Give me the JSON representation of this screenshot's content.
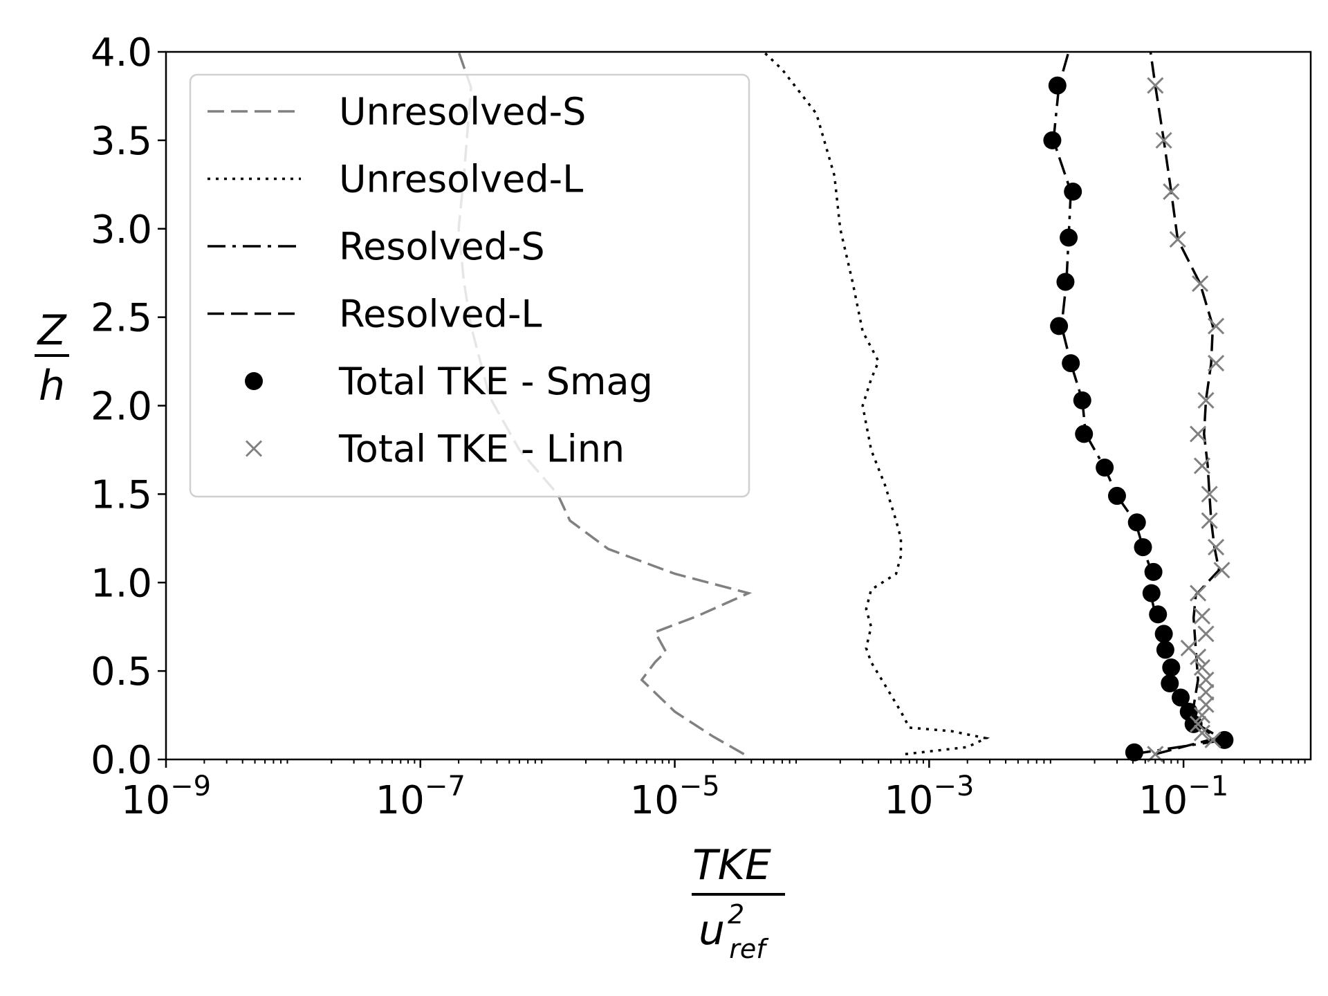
{
  "chart_data": {
    "type": "line",
    "title": "",
    "xscale": "log",
    "xlim": [
      1e-09,
      1
    ],
    "ylim": [
      0,
      4
    ],
    "grid": false,
    "legend_position": "upper-left",
    "xticks": [
      {
        "value": 1e-09,
        "base": "10",
        "exponent": "−9"
      },
      {
        "value": 1e-07,
        "base": "10",
        "exponent": "−7"
      },
      {
        "value": 1e-05,
        "base": "10",
        "exponent": "−5"
      },
      {
        "value": 0.001,
        "base": "10",
        "exponent": "−3"
      },
      {
        "value": 0.1,
        "base": "10",
        "exponent": "−1"
      }
    ],
    "yticks": [
      {
        "value": 0.0,
        "label": "0.0"
      },
      {
        "value": 0.5,
        "label": "0.5"
      },
      {
        "value": 1.0,
        "label": "1.0"
      },
      {
        "value": 1.5,
        "label": "1.5"
      },
      {
        "value": 2.0,
        "label": "2.0"
      },
      {
        "value": 2.5,
        "label": "2.5"
      },
      {
        "value": 3.0,
        "label": "3.0"
      },
      {
        "value": 3.5,
        "label": "3.5"
      },
      {
        "value": 4.0,
        "label": "4.0"
      }
    ],
    "xlabel": {
      "numerator": "TKE",
      "denominator_base": "u",
      "denominator_sup": "2",
      "denominator_sub": "ref"
    },
    "ylabel": {
      "numerator": "Z",
      "denominator": "h"
    },
    "series": [
      {
        "name": "Unresolved-S",
        "style": "dashed",
        "color": "#808080",
        "marker": "none",
        "points": [
          [
            3.5e-05,
            0.03
          ],
          [
            2e-05,
            0.13
          ],
          [
            1e-05,
            0.27
          ],
          [
            5.5e-06,
            0.45
          ],
          [
            7e-06,
            0.55
          ],
          [
            8.5e-06,
            0.61
          ],
          [
            7e-06,
            0.72
          ],
          [
            1.5e-05,
            0.81
          ],
          [
            3.8e-05,
            0.94
          ],
          [
            1e-05,
            1.05
          ],
          [
            3e-06,
            1.19
          ],
          [
            1.5e-06,
            1.35
          ],
          [
            1.2e-06,
            1.5
          ],
          [
            6e-07,
            1.75
          ],
          [
            3.5e-07,
            2.05
          ],
          [
            2.5e-07,
            2.45
          ],
          [
            2.2e-07,
            2.7
          ],
          [
            2e-07,
            3.0
          ],
          [
            2.2e-07,
            3.3
          ],
          [
            2.5e-07,
            3.8
          ],
          [
            2e-07,
            4.0
          ]
        ]
      },
      {
        "name": "Unresolved-L",
        "style": "dotted",
        "color": "#000000",
        "marker": "none",
        "points": [
          [
            0.00065,
            0.03
          ],
          [
            0.002,
            0.07
          ],
          [
            0.0028,
            0.12
          ],
          [
            0.0015,
            0.16
          ],
          [
            0.0007,
            0.18
          ],
          [
            0.0006,
            0.27
          ],
          [
            0.00045,
            0.42
          ],
          [
            0.00035,
            0.55
          ],
          [
            0.00032,
            0.63
          ],
          [
            0.00035,
            0.75
          ],
          [
            0.00032,
            0.85
          ],
          [
            0.00035,
            0.96
          ],
          [
            0.00055,
            1.05
          ],
          [
            0.0006,
            1.15
          ],
          [
            0.0006,
            1.25
          ],
          [
            0.00055,
            1.35
          ],
          [
            0.00045,
            1.55
          ],
          [
            0.00035,
            1.75
          ],
          [
            0.0003,
            2.0
          ],
          [
            0.00035,
            2.15
          ],
          [
            0.0004,
            2.25
          ],
          [
            0.0003,
            2.42
          ],
          [
            0.00025,
            2.7
          ],
          [
            0.0002,
            3.0
          ],
          [
            0.00018,
            3.3
          ],
          [
            0.00013,
            3.65
          ],
          [
            7e-05,
            3.9
          ],
          [
            5e-05,
            4.0
          ]
        ]
      },
      {
        "name": "Resolved-S",
        "style": "dashdot",
        "color": "#000000",
        "marker": "none",
        "points": [
          [
            0.04,
            0.03
          ],
          [
            0.21,
            0.11
          ],
          [
            0.12,
            0.21
          ],
          [
            0.11,
            0.27
          ],
          [
            0.095,
            0.35
          ],
          [
            0.078,
            0.44
          ],
          [
            0.075,
            0.53
          ],
          [
            0.07,
            0.62
          ],
          [
            0.068,
            0.71
          ],
          [
            0.06,
            0.82
          ],
          [
            0.055,
            0.94
          ],
          [
            0.056,
            1.06
          ],
          [
            0.048,
            1.2
          ],
          [
            0.042,
            1.34
          ],
          [
            0.03,
            1.49
          ],
          [
            0.024,
            1.65
          ],
          [
            0.017,
            1.84
          ],
          [
            0.016,
            2.03
          ],
          [
            0.013,
            2.24
          ],
          [
            0.011,
            2.45
          ],
          [
            0.012,
            2.7
          ],
          [
            0.0125,
            2.95
          ],
          [
            0.013,
            3.21
          ],
          [
            0.0095,
            3.5
          ],
          [
            0.0105,
            3.81
          ],
          [
            0.0125,
            4.0
          ]
        ]
      },
      {
        "name": "Resolved-L",
        "style": "dashed",
        "color": "#000000",
        "marker": "none",
        "points": [
          [
            0.06,
            0.03
          ],
          [
            0.18,
            0.12
          ],
          [
            0.13,
            0.2
          ],
          [
            0.12,
            0.3
          ],
          [
            0.13,
            0.45
          ],
          [
            0.125,
            0.62
          ],
          [
            0.12,
            0.8
          ],
          [
            0.125,
            0.93
          ],
          [
            0.19,
            1.07
          ],
          [
            0.175,
            1.2
          ],
          [
            0.165,
            1.35
          ],
          [
            0.16,
            1.5
          ],
          [
            0.155,
            1.66
          ],
          [
            0.145,
            1.84
          ],
          [
            0.15,
            2.03
          ],
          [
            0.165,
            2.24
          ],
          [
            0.17,
            2.45
          ],
          [
            0.135,
            2.69
          ],
          [
            0.09,
            2.94
          ],
          [
            0.08,
            3.21
          ],
          [
            0.07,
            3.5
          ],
          [
            0.06,
            3.81
          ],
          [
            0.055,
            4.0
          ]
        ]
      },
      {
        "name": "Total TKE - Smag",
        "style": "none",
        "color": "#000000",
        "marker": "circle",
        "points": [
          [
            0.041,
            0.04
          ],
          [
            0.21,
            0.11
          ],
          [
            0.12,
            0.2
          ],
          [
            0.11,
            0.27
          ],
          [
            0.095,
            0.35
          ],
          [
            0.078,
            0.43
          ],
          [
            0.08,
            0.52
          ],
          [
            0.072,
            0.62
          ],
          [
            0.07,
            0.71
          ],
          [
            0.063,
            0.82
          ],
          [
            0.056,
            0.94
          ],
          [
            0.058,
            1.06
          ],
          [
            0.048,
            1.2
          ],
          [
            0.043,
            1.34
          ],
          [
            0.03,
            1.49
          ],
          [
            0.024,
            1.65
          ],
          [
            0.0165,
            1.84
          ],
          [
            0.016,
            2.03
          ],
          [
            0.013,
            2.24
          ],
          [
            0.0105,
            2.45
          ],
          [
            0.0118,
            2.7
          ],
          [
            0.0125,
            2.95
          ],
          [
            0.0135,
            3.21
          ],
          [
            0.0093,
            3.5
          ],
          [
            0.0102,
            3.81
          ]
        ]
      },
      {
        "name": "Total TKE - Linn",
        "style": "none",
        "color": "#808080",
        "marker": "x",
        "points": [
          [
            0.06,
            0.03
          ],
          [
            0.17,
            0.11
          ],
          [
            0.14,
            0.15
          ],
          [
            0.13,
            0.2
          ],
          [
            0.14,
            0.25
          ],
          [
            0.15,
            0.31
          ],
          [
            0.15,
            0.38
          ],
          [
            0.15,
            0.45
          ],
          [
            0.14,
            0.52
          ],
          [
            0.13,
            0.58
          ],
          [
            0.11,
            0.63
          ],
          [
            0.15,
            0.71
          ],
          [
            0.14,
            0.81
          ],
          [
            0.13,
            0.94
          ],
          [
            0.2,
            1.07
          ],
          [
            0.18,
            1.2
          ],
          [
            0.16,
            1.35
          ],
          [
            0.16,
            1.5
          ],
          [
            0.14,
            1.66
          ],
          [
            0.13,
            1.84
          ],
          [
            0.15,
            2.03
          ],
          [
            0.18,
            2.24
          ],
          [
            0.18,
            2.45
          ],
          [
            0.135,
            2.69
          ],
          [
            0.09,
            2.94
          ],
          [
            0.08,
            3.21
          ],
          [
            0.07,
            3.5
          ],
          [
            0.06,
            3.81
          ]
        ]
      }
    ]
  }
}
